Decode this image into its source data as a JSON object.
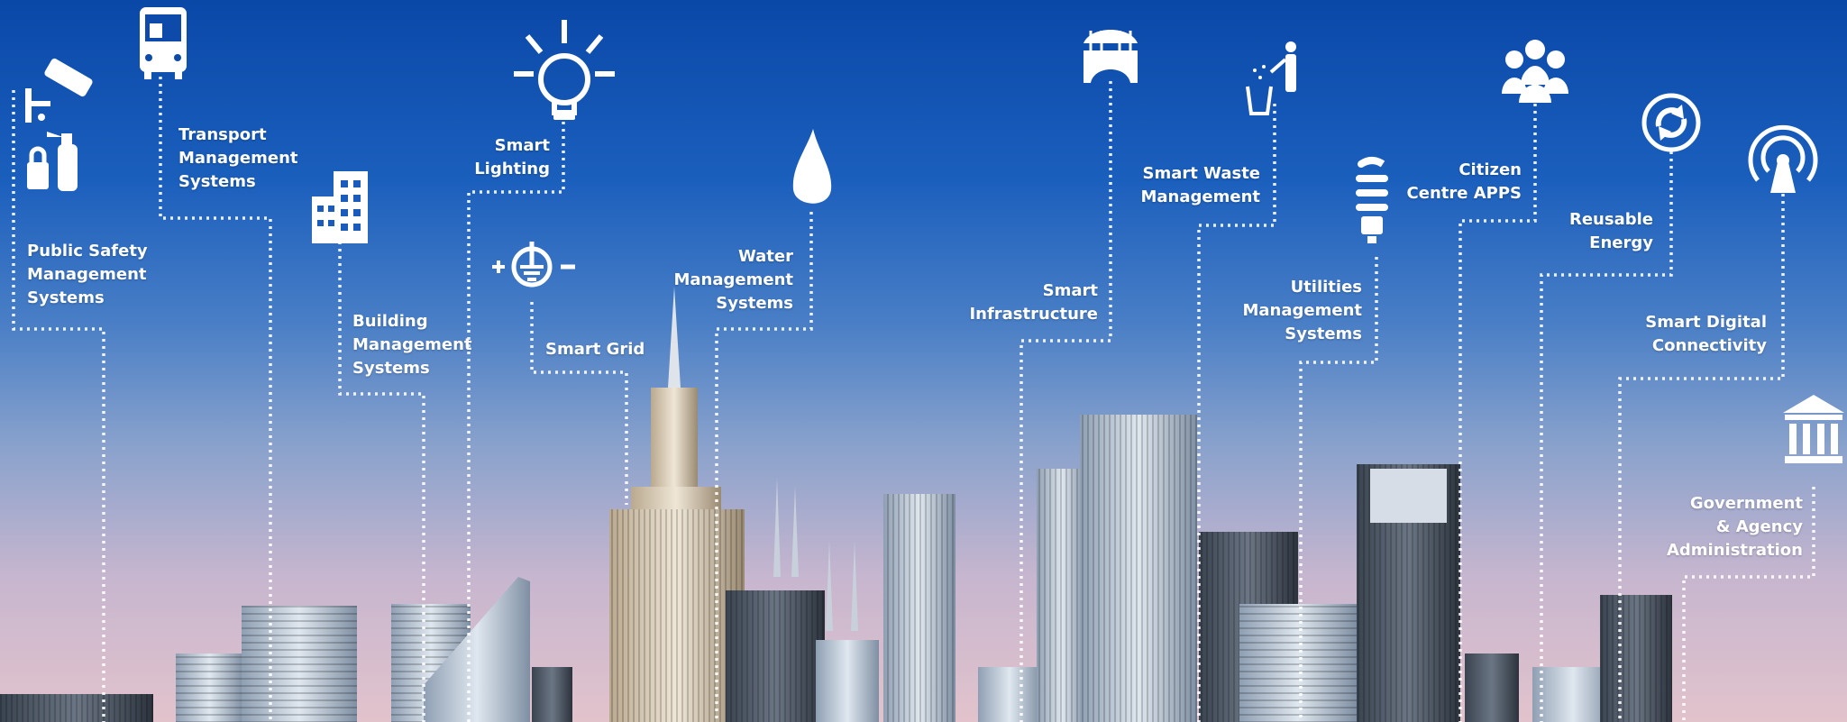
{
  "labels": {
    "public_safety": "Public Safety\nManagement\nSystems",
    "transport": "Transport\nManagement\nSystems",
    "building": "Building\nManagement\nSystems",
    "lighting": "Smart\nLighting",
    "grid": "Smart Grid",
    "water": "Water\nManagement\nSystems",
    "infrastructure": "Smart\nInfrastructure",
    "waste": "Smart Waste\nManagement",
    "utilities": "Utilities\nManagement\nSystems",
    "citizen": "Citizen\nCentre APPS",
    "energy": "Reusable\nEnergy",
    "digital": "Smart Digital\nConnectivity",
    "government": "Government\n& Agency\nAdministration"
  },
  "icons": [
    "cctv-camera-icon",
    "fire-extinguisher-icon",
    "padlock-icon",
    "bus-icon",
    "office-building-icon",
    "light-bulb-icon",
    "grounding-plug-icon",
    "water-drop-icon",
    "bridge-icon",
    "waste-bin-person-icon",
    "energy-saving-bulb-icon",
    "people-group-icon",
    "recycle-arrows-icon",
    "wireless-tower-icon",
    "government-building-icon"
  ],
  "colors": {
    "sky_top": "#0a48a8",
    "sky_bottom": "#e2c3cc",
    "text": "#ffffff"
  }
}
